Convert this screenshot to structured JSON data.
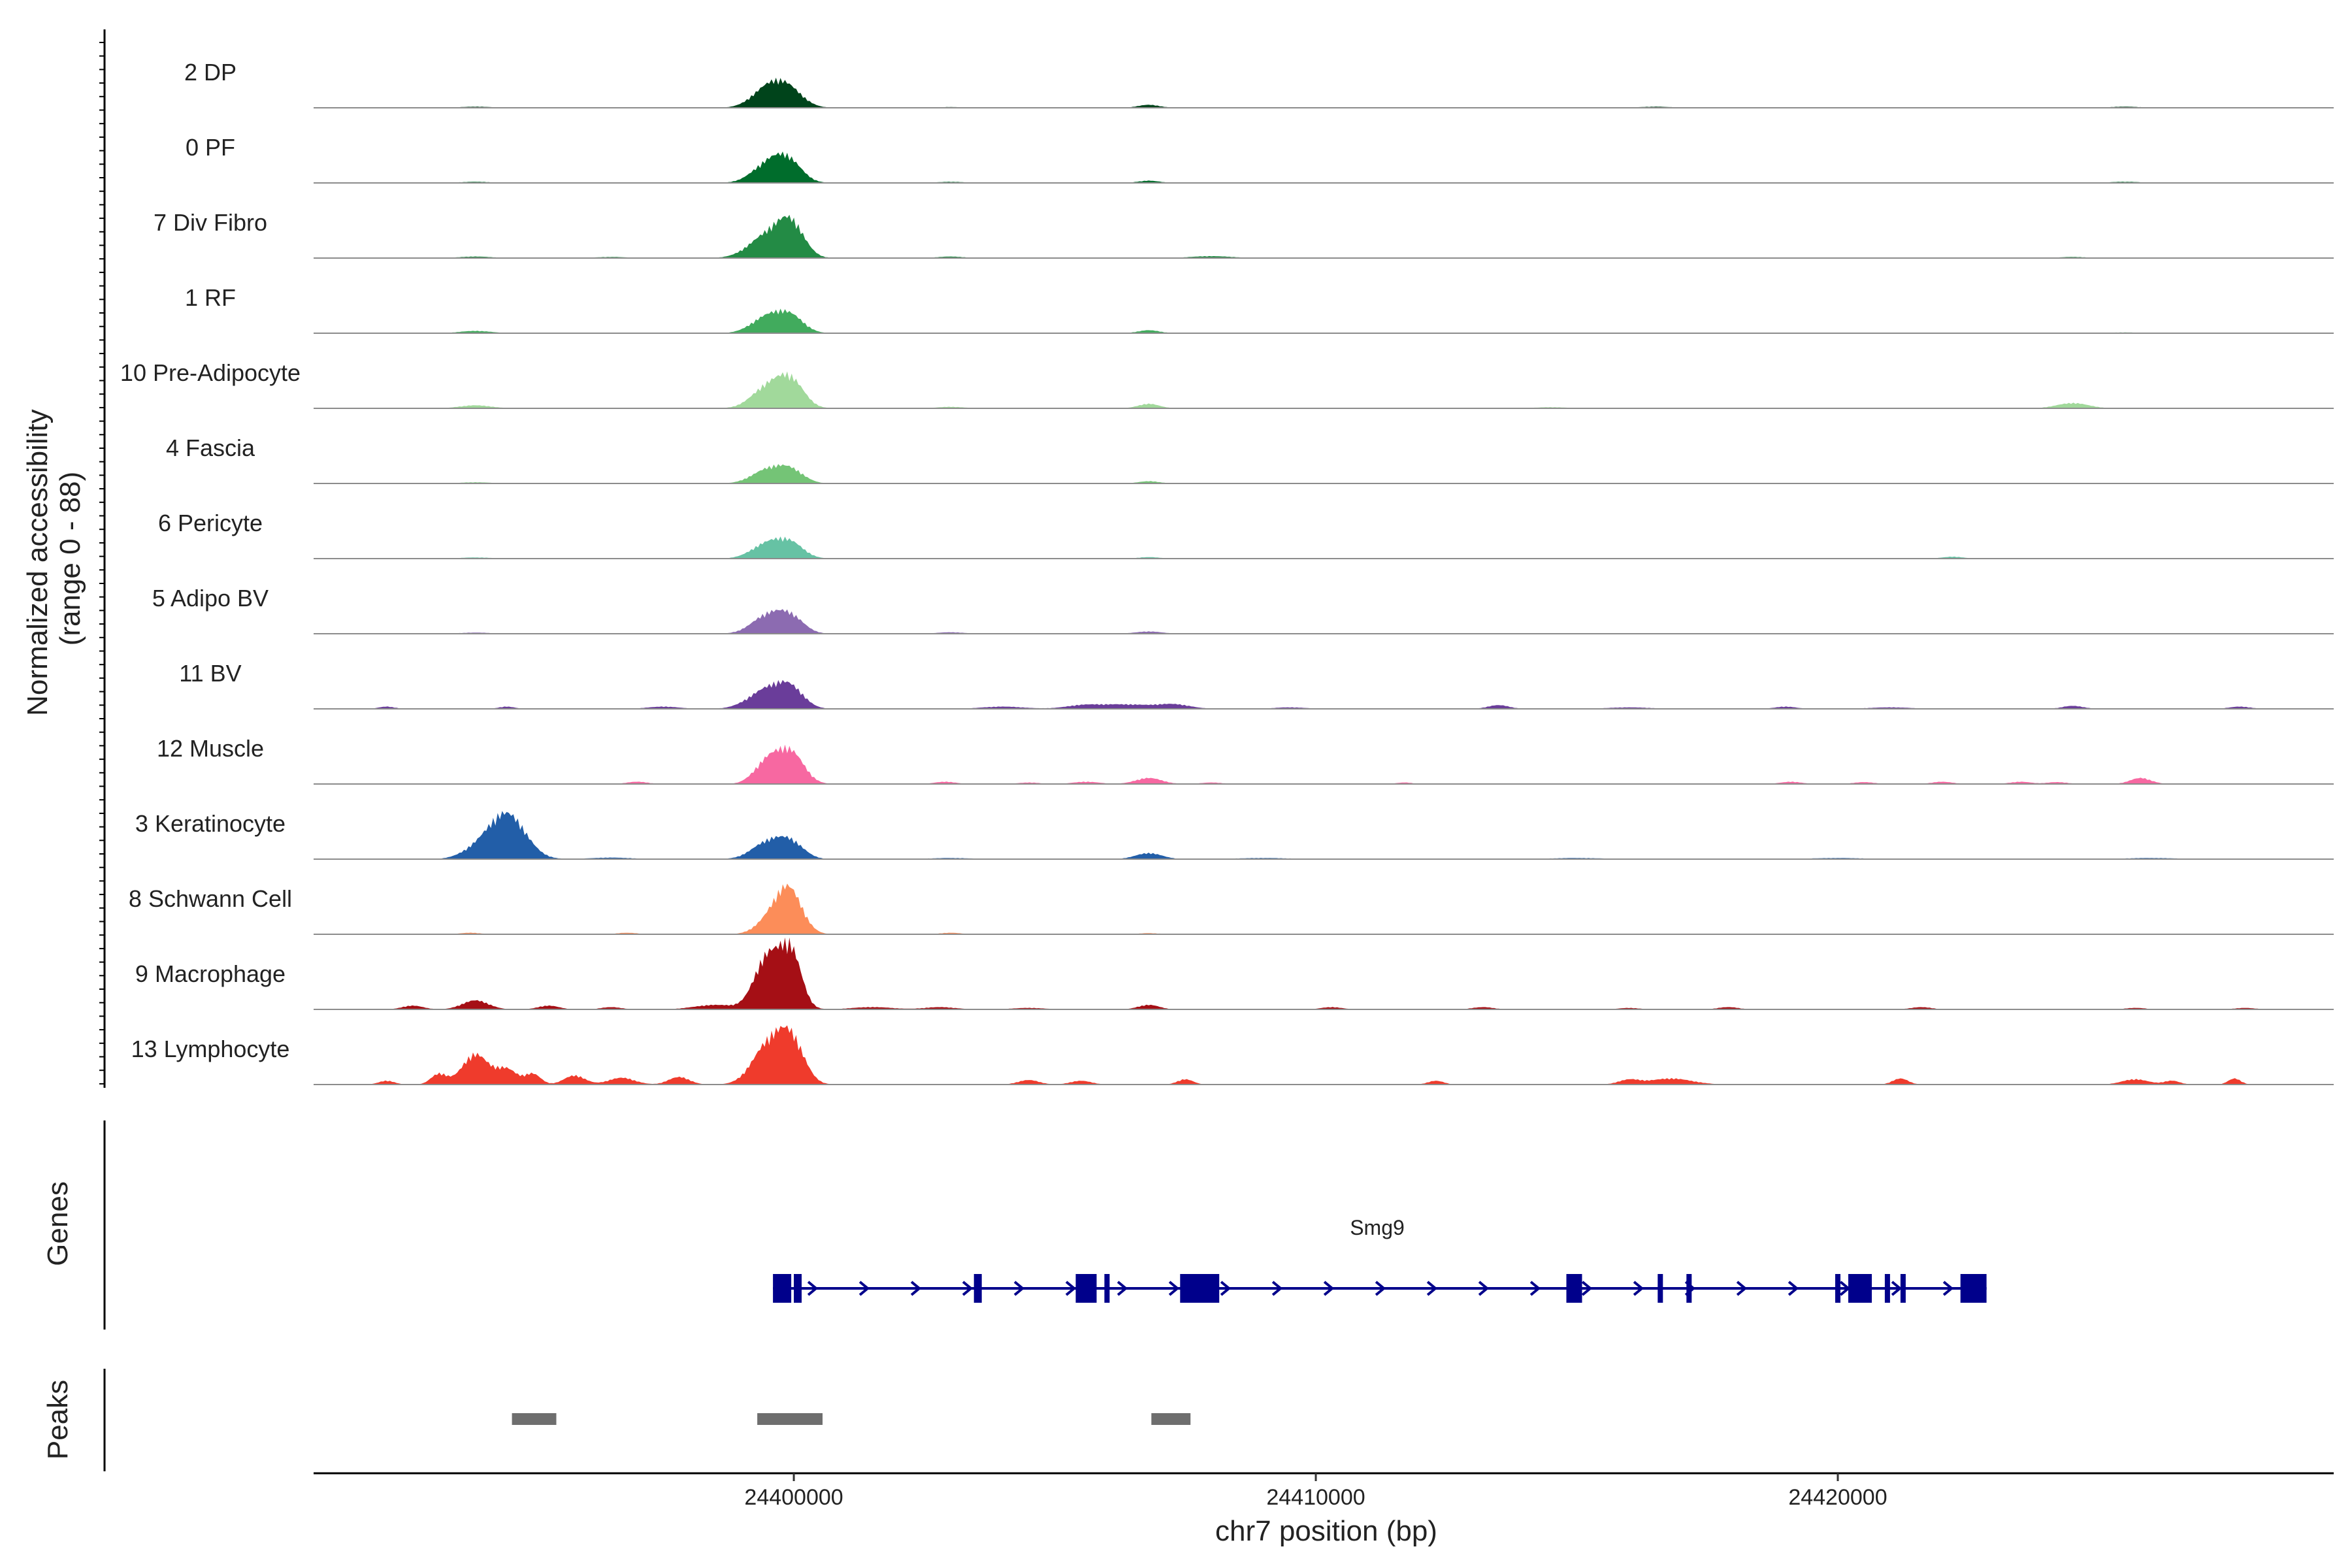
{
  "chart_data": {
    "type": "area",
    "ylabel_lines": [
      "Normalized accessibility",
      "(range 0 - 88)"
    ],
    "y_range": [
      0,
      88
    ],
    "xlabel": "chr7 position (bp)",
    "x_range": [
      24390800,
      24429500
    ],
    "x_ticks": [
      24400000,
      24410000,
      24420000
    ],
    "x_tick_labels": [
      "24400000",
      "24410000",
      "24420000"
    ],
    "tracks": [
      {
        "name": "2 DP",
        "color": "#00441b",
        "peaks": [
          [
            24399500,
            25,
            300
          ],
          [
            24399900,
            22,
            280
          ],
          [
            24406800,
            4,
            200
          ],
          [
            24393900,
            1.5,
            300
          ],
          [
            24416500,
            1.5,
            300
          ],
          [
            24425500,
            1.5,
            300
          ],
          [
            24403000,
            1,
            250
          ]
        ]
      },
      {
        "name": "0 PF",
        "color": "#006d2c",
        "peaks": [
          [
            24399500,
            24,
            300
          ],
          [
            24399900,
            26,
            260
          ],
          [
            24406800,
            3,
            200
          ],
          [
            24393900,
            1.5,
            300
          ],
          [
            24425500,
            1.5,
            300
          ],
          [
            24403000,
            1.5,
            250
          ]
        ]
      },
      {
        "name": "7 Div Fibro",
        "color": "#238b45",
        "peaks": [
          [
            24399500,
            30,
            350
          ],
          [
            24399950,
            40,
            250
          ],
          [
            24393900,
            2,
            300
          ],
          [
            24403000,
            2,
            250
          ],
          [
            24408000,
            2.5,
            400
          ],
          [
            24424500,
            1.5,
            250
          ],
          [
            24396500,
            1.5,
            300
          ]
        ]
      },
      {
        "name": "1 RF",
        "color": "#41ab5d",
        "peaks": [
          [
            24399500,
            22,
            300
          ],
          [
            24399950,
            20,
            250
          ],
          [
            24393900,
            3,
            300
          ],
          [
            24406800,
            4,
            200
          ],
          [
            24425500,
            1,
            300
          ]
        ]
      },
      {
        "name": "10 Pre-Adipocyte",
        "color": "#a1d99b",
        "peaks": [
          [
            24399500,
            28,
            300
          ],
          [
            24399950,
            34,
            250
          ],
          [
            24393900,
            4,
            300
          ],
          [
            24406800,
            6,
            200
          ],
          [
            24424500,
            7,
            300
          ],
          [
            24403000,
            2,
            250
          ],
          [
            24414500,
            1.5,
            300
          ]
        ]
      },
      {
        "name": "4 Fascia",
        "color": "#74c476",
        "peaks": [
          [
            24399500,
            18,
            300
          ],
          [
            24399950,
            16,
            250
          ],
          [
            24393900,
            1.5,
            300
          ],
          [
            24406800,
            3,
            200
          ]
        ]
      },
      {
        "name": "6 Pericyte",
        "color": "#66c2a4",
        "peaks": [
          [
            24399500,
            20,
            300
          ],
          [
            24399950,
            18,
            250
          ],
          [
            24393900,
            1.5,
            300
          ],
          [
            24406800,
            2,
            200
          ],
          [
            24422200,
            2.5,
            200
          ]
        ]
      },
      {
        "name": "5 Adipo BV",
        "color": "#8c6bb1",
        "peaks": [
          [
            24399500,
            24,
            300
          ],
          [
            24399950,
            20,
            250
          ],
          [
            24406800,
            3,
            250
          ],
          [
            24403000,
            2,
            250
          ],
          [
            24393900,
            1.5,
            300
          ]
        ]
      },
      {
        "name": "11 BV",
        "color": "#6a3d9a",
        "peaks": [
          [
            24399500,
            26,
            350
          ],
          [
            24399950,
            22,
            250
          ],
          [
            24392200,
            3,
            150
          ],
          [
            24394500,
            3,
            150
          ],
          [
            24397500,
            3,
            300
          ],
          [
            24406300,
            6,
            600
          ],
          [
            24405500,
            3,
            300
          ],
          [
            24407300,
            5,
            300
          ],
          [
            24413500,
            5,
            200
          ],
          [
            24419000,
            3,
            200
          ],
          [
            24424500,
            4,
            200
          ],
          [
            24427700,
            3,
            200
          ],
          [
            24404000,
            3,
            400
          ],
          [
            24409500,
            2,
            300
          ],
          [
            24416000,
            2,
            400
          ],
          [
            24421000,
            2,
            400
          ]
        ]
      },
      {
        "name": "12 Muscle",
        "color": "#f768a1",
        "peaks": [
          [
            24399500,
            30,
            250
          ],
          [
            24399950,
            40,
            250
          ],
          [
            24406800,
            8,
            250
          ],
          [
            24425800,
            8,
            200
          ],
          [
            24419100,
            3,
            200
          ],
          [
            24402900,
            3,
            200
          ],
          [
            24404500,
            2,
            200
          ],
          [
            24405600,
            3,
            250
          ],
          [
            24397000,
            3,
            200
          ],
          [
            24420500,
            2.5,
            200
          ],
          [
            24422000,
            3,
            200
          ],
          [
            24423500,
            3,
            200
          ],
          [
            24424200,
            2.5,
            200
          ],
          [
            24411700,
            2,
            150
          ],
          [
            24408000,
            2,
            200
          ]
        ]
      },
      {
        "name": "3 Keratinocyte",
        "color": "#225ea8",
        "peaks": [
          [
            24394500,
            60,
            350
          ],
          [
            24393900,
            10,
            300
          ],
          [
            24399500,
            22,
            300
          ],
          [
            24399950,
            20,
            250
          ],
          [
            24406800,
            8,
            250
          ],
          [
            24409000,
            1.5,
            500
          ],
          [
            24403000,
            1.5,
            400
          ],
          [
            24415000,
            1.5,
            500
          ],
          [
            24420000,
            1.5,
            500
          ],
          [
            24426000,
            1.5,
            500
          ],
          [
            24396500,
            2,
            400
          ]
        ]
      },
      {
        "name": "8 Schwann Cell",
        "color": "#fc8d59",
        "peaks": [
          [
            24399900,
            60,
            250
          ],
          [
            24399500,
            15,
            250
          ],
          [
            24393800,
            2,
            200
          ],
          [
            24396800,
            2,
            200
          ],
          [
            24403000,
            2,
            200
          ],
          [
            24406800,
            1.5,
            200
          ]
        ]
      },
      {
        "name": "9 Macrophage",
        "color": "#a50f15",
        "peaks": [
          [
            24399500,
            70,
            250
          ],
          [
            24399950,
            72,
            200
          ],
          [
            24393900,
            12,
            250
          ],
          [
            24392700,
            5,
            200
          ],
          [
            24395300,
            5,
            200
          ],
          [
            24396500,
            3,
            200
          ],
          [
            24398500,
            6,
            400
          ],
          [
            24401500,
            3,
            400
          ],
          [
            24402800,
            3,
            300
          ],
          [
            24406800,
            6,
            200
          ],
          [
            24410300,
            3,
            200
          ],
          [
            24413200,
            3,
            200
          ],
          [
            24416000,
            2,
            200
          ],
          [
            24417900,
            3,
            200
          ],
          [
            24421600,
            3,
            200
          ],
          [
            24425700,
            2,
            200
          ],
          [
            24427800,
            2,
            200
          ],
          [
            24404500,
            2,
            300
          ]
        ]
      },
      {
        "name": "13 Lymphocyte",
        "color": "#ef3b2c",
        "peaks": [
          [
            24399500,
            50,
            300
          ],
          [
            24399950,
            55,
            250
          ],
          [
            24393900,
            40,
            250
          ],
          [
            24393200,
            14,
            150
          ],
          [
            24394500,
            20,
            200
          ],
          [
            24395000,
            14,
            150
          ],
          [
            24395800,
            12,
            200
          ],
          [
            24396700,
            9,
            250
          ],
          [
            24397800,
            10,
            200
          ],
          [
            24392200,
            5,
            150
          ],
          [
            24404500,
            6,
            200
          ],
          [
            24405500,
            5,
            200
          ],
          [
            24407500,
            7,
            150
          ],
          [
            24412300,
            5,
            150
          ],
          [
            24416000,
            6,
            200
          ],
          [
            24416800,
            8,
            400
          ],
          [
            24421200,
            8,
            150
          ],
          [
            24425700,
            7,
            250
          ],
          [
            24426400,
            5,
            150
          ],
          [
            24427600,
            8,
            120
          ]
        ]
      }
    ],
    "genes_label": "Genes",
    "gene": {
      "name": "Smg9",
      "color": "#00008b",
      "strand": "+",
      "start": 24399600,
      "end": 24422850,
      "exons": [
        [
          24399600,
          24399950
        ],
        [
          24400000,
          24400150
        ],
        [
          24403450,
          24403600
        ],
        [
          24405400,
          24405800
        ],
        [
          24405950,
          24406050
        ],
        [
          24407400,
          24408150
        ],
        [
          24414800,
          24415100
        ],
        [
          24416550,
          24416650
        ],
        [
          24417100,
          24417200
        ],
        [
          24419950,
          24420050
        ],
        [
          24420200,
          24420650
        ],
        [
          24420900,
          24421000
        ],
        [
          24421200,
          24421300
        ],
        [
          24422350,
          24422850
        ]
      ]
    },
    "peaks_label": "Peaks",
    "peak_regions": [
      [
        24394600,
        24395450
      ],
      [
        24399300,
        24400550
      ],
      [
        24406850,
        24407600
      ]
    ],
    "peak_color": "#6e6e6e",
    "grid": false
  }
}
